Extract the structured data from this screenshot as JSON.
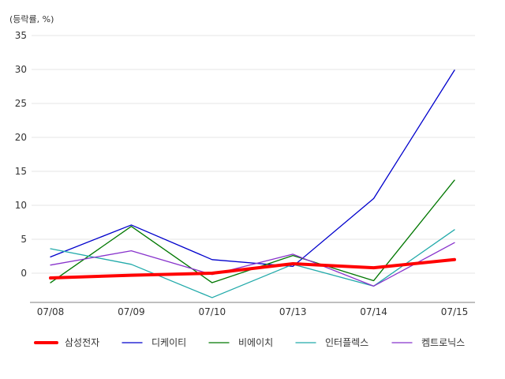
{
  "chart_data": {
    "type": "line",
    "title": "",
    "ylabel": "(등락률, %)",
    "xlabel": "",
    "ylim": [
      -4,
      35
    ],
    "yticks": [
      0,
      5,
      10,
      15,
      20,
      25,
      30,
      35
    ],
    "grid": true,
    "legend_position": "bottom",
    "categories": [
      "07/08",
      "07/09",
      "07/10",
      "07/13",
      "07/14",
      "07/15"
    ],
    "series": [
      {
        "name": "삼성전자",
        "color": "#ff0000",
        "values": [
          -0.7,
          -0.3,
          0.0,
          1.4,
          0.8,
          2.0
        ]
      },
      {
        "name": "디케이티",
        "color": "#0000cc",
        "values": [
          2.4,
          7.1,
          2.0,
          1.0,
          11.0,
          29.9
        ]
      },
      {
        "name": "비에이치",
        "color": "#007700",
        "values": [
          -1.4,
          6.9,
          -1.4,
          2.6,
          -1.1,
          13.7
        ]
      },
      {
        "name": "인터플렉스",
        "color": "#22aaaa",
        "values": [
          3.6,
          1.3,
          -3.6,
          1.3,
          -1.9,
          6.4
        ]
      },
      {
        "name": "켐트로닉스",
        "color": "#8833cc",
        "values": [
          1.2,
          3.3,
          -0.2,
          2.8,
          -1.9,
          4.5
        ]
      }
    ]
  }
}
